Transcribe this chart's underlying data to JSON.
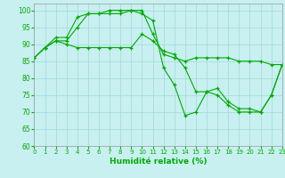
{
  "xlabel": "Humidité relative (%)",
  "bg_color": "#c8f0f0",
  "grid_color": "#a0d8d8",
  "line_color": "#00aa00",
  "ylim": [
    60,
    102
  ],
  "xlim": [
    0,
    23
  ],
  "yticks": [
    60,
    65,
    70,
    75,
    80,
    85,
    90,
    95,
    100
  ],
  "xticks": [
    0,
    1,
    2,
    3,
    4,
    5,
    6,
    7,
    8,
    9,
    10,
    11,
    12,
    13,
    14,
    15,
    16,
    17,
    18,
    19,
    20,
    21,
    22,
    23
  ],
  "series1": [
    86,
    89,
    91,
    91,
    95,
    99,
    99,
    100,
    100,
    100,
    99,
    97,
    83,
    78,
    69,
    70,
    76,
    77,
    73,
    71,
    71,
    70,
    75,
    84
  ],
  "series2": [
    86,
    89,
    92,
    92,
    98,
    99,
    99,
    99,
    99,
    100,
    100,
    93,
    87,
    86,
    85,
    86,
    86,
    86,
    86,
    85,
    85,
    85,
    84,
    84
  ],
  "series3": [
    86,
    89,
    91,
    90,
    89,
    89,
    89,
    89,
    89,
    89,
    93,
    91,
    88,
    87,
    83,
    76,
    76,
    75,
    72,
    70,
    70,
    70,
    75,
    84
  ]
}
